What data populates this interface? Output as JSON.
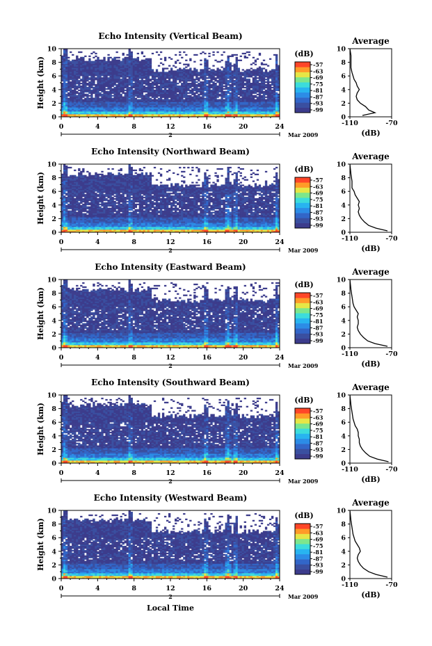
{
  "figure": {
    "x_label": "Local Time",
    "date_label": "Mar 2009",
    "day_label": "2",
    "colorbar_unit": "(dB)",
    "average_title": "Average",
    "average_xlabel": "(dB)"
  },
  "colors": {
    "colormap": [
      "#3c3c8c",
      "#3a4fa0",
      "#3266c8",
      "#2c8ce6",
      "#28b4f0",
      "#3cdcdc",
      "#7de68c",
      "#e6e646",
      "#ff9b28",
      "#ff4628"
    ],
    "background": "#ffffff"
  },
  "chart_data": [
    {
      "type": "heatmap",
      "title": "Echo Intensity (Vertical Beam)",
      "ylabel": "Height (km)",
      "xlim": [
        0,
        24
      ],
      "ylim": [
        0,
        10
      ],
      "x_ticks": [
        0,
        4,
        8,
        12,
        16,
        20,
        24
      ],
      "y_ticks": [
        0,
        2,
        4,
        6,
        8,
        10
      ],
      "colorbar_ticks": [
        -57,
        -63,
        -69,
        -75,
        -81,
        -87,
        -93,
        -99
      ],
      "avg": {
        "xlim": [
          -110,
          -70
        ],
        "x_ticks": [
          -110,
          -70
        ],
        "ylim": [
          0,
          10
        ],
        "y_ticks": [
          0,
          2,
          4,
          6,
          8,
          10
        ],
        "profile": [
          [
            -98,
            0.2
          ],
          [
            -86,
            0.6
          ],
          [
            -92,
            1.0
          ],
          [
            -95,
            1.5
          ],
          [
            -100,
            2.0
          ],
          [
            -103,
            2.5
          ],
          [
            -104,
            3.0
          ],
          [
            -103,
            3.5
          ],
          [
            -101,
            4.0
          ],
          [
            -103,
            4.5
          ],
          [
            -104,
            5.0
          ],
          [
            -106,
            5.5
          ],
          [
            -107,
            6.0
          ],
          [
            -108,
            6.5
          ],
          [
            -109,
            7.2
          ],
          [
            -109,
            8.0
          ],
          [
            -109,
            9.0
          ],
          [
            -110,
            10.0
          ]
        ]
      }
    },
    {
      "type": "heatmap",
      "title": "Echo Intensity (Northward Beam)",
      "ylabel": "Height (km)",
      "xlim": [
        0,
        24
      ],
      "ylim": [
        0,
        10
      ],
      "x_ticks": [
        0,
        4,
        8,
        12,
        16,
        20,
        24
      ],
      "y_ticks": [
        0,
        2,
        4,
        6,
        8,
        10
      ],
      "colorbar_ticks": [
        -57,
        -63,
        -69,
        -75,
        -81,
        -87,
        -93,
        -99
      ],
      "avg": {
        "xlim": [
          -110,
          -70
        ],
        "x_ticks": [
          -110,
          -70
        ],
        "ylim": [
          0,
          10
        ],
        "y_ticks": [
          0,
          2,
          4,
          6,
          8,
          10
        ],
        "profile": [
          [
            -74,
            0.2
          ],
          [
            -85,
            0.6
          ],
          [
            -92,
            1.0
          ],
          [
            -96,
            1.5
          ],
          [
            -99,
            2.0
          ],
          [
            -101,
            2.5
          ],
          [
            -102,
            3.0
          ],
          [
            -101,
            3.5
          ],
          [
            -102,
            4.0
          ],
          [
            -101,
            4.5
          ],
          [
            -103,
            5.0
          ],
          [
            -105,
            5.5
          ],
          [
            -106,
            6.0
          ],
          [
            -108,
            6.5
          ],
          [
            -108,
            7.5
          ],
          [
            -109,
            8.5
          ],
          [
            -110,
            10.0
          ]
        ]
      }
    },
    {
      "type": "heatmap",
      "title": "Echo Intensity (Eastward Beam)",
      "ylabel": "Height (km)",
      "xlim": [
        0,
        24
      ],
      "ylim": [
        0,
        10
      ],
      "x_ticks": [
        0,
        4,
        8,
        12,
        16,
        20,
        24
      ],
      "y_ticks": [
        0,
        2,
        4,
        6,
        8,
        10
      ],
      "colorbar_ticks": [
        -57,
        -63,
        -69,
        -75,
        -81,
        -87,
        -93,
        -99
      ],
      "avg": {
        "xlim": [
          -110,
          -70
        ],
        "x_ticks": [
          -110,
          -70
        ],
        "ylim": [
          0,
          10
        ],
        "y_ticks": [
          0,
          2,
          4,
          6,
          8,
          10
        ],
        "profile": [
          [
            -74,
            0.2
          ],
          [
            -86,
            0.6
          ],
          [
            -93,
            1.0
          ],
          [
            -97,
            1.5
          ],
          [
            -100,
            2.0
          ],
          [
            -102,
            2.5
          ],
          [
            -103,
            3.0
          ],
          [
            -102,
            3.5
          ],
          [
            -102,
            4.0
          ],
          [
            -103,
            4.5
          ],
          [
            -102,
            5.0
          ],
          [
            -104,
            5.5
          ],
          [
            -106,
            6.0
          ],
          [
            -107,
            6.5
          ],
          [
            -108,
            7.5
          ],
          [
            -109,
            8.5
          ],
          [
            -110,
            10.0
          ]
        ]
      }
    },
    {
      "type": "heatmap",
      "title": "Echo Intensity (Southward Beam)",
      "ylabel": "Height (km)",
      "xlim": [
        0,
        24
      ],
      "ylim": [
        0,
        10
      ],
      "x_ticks": [
        0,
        4,
        8,
        12,
        16,
        20,
        24
      ],
      "y_ticks": [
        0,
        2,
        4,
        6,
        8,
        10
      ],
      "colorbar_ticks": [
        -57,
        -63,
        -69,
        -75,
        -81,
        -87,
        -93,
        -99
      ],
      "avg": {
        "xlim": [
          -110,
          -70
        ],
        "x_ticks": [
          -110,
          -70
        ],
        "ylim": [
          0,
          10
        ],
        "y_ticks": [
          0,
          2,
          4,
          6,
          8,
          10
        ],
        "profile": [
          [
            -73,
            0.2
          ],
          [
            -84,
            0.6
          ],
          [
            -91,
            1.0
          ],
          [
            -95,
            1.5
          ],
          [
            -98,
            2.0
          ],
          [
            -100,
            2.5
          ],
          [
            -101,
            3.0
          ],
          [
            -101,
            3.5
          ],
          [
            -102,
            4.0
          ],
          [
            -102,
            4.5
          ],
          [
            -103,
            5.0
          ],
          [
            -105,
            5.5
          ],
          [
            -106,
            6.0
          ],
          [
            -107,
            6.5
          ],
          [
            -108,
            7.5
          ],
          [
            -109,
            8.5
          ],
          [
            -110,
            10.0
          ]
        ]
      }
    },
    {
      "type": "heatmap",
      "title": "Echo Intensity (Westward Beam)",
      "ylabel": "Height (km)",
      "xlim": [
        0,
        24
      ],
      "ylim": [
        0,
        10
      ],
      "x_ticks": [
        0,
        4,
        8,
        12,
        16,
        20,
        24
      ],
      "y_ticks": [
        0,
        2,
        4,
        6,
        8,
        10
      ],
      "colorbar_ticks": [
        -57,
        -63,
        -69,
        -75,
        -81,
        -87,
        -93,
        -99
      ],
      "avg": {
        "xlim": [
          -110,
          -70
        ],
        "x_ticks": [
          -110,
          -70
        ],
        "ylim": [
          0,
          10
        ],
        "y_ticks": [
          0,
          2,
          4,
          6,
          8,
          10
        ],
        "profile": [
          [
            -74,
            0.2
          ],
          [
            -85,
            0.6
          ],
          [
            -92,
            1.0
          ],
          [
            -97,
            1.5
          ],
          [
            -100,
            2.0
          ],
          [
            -102,
            2.5
          ],
          [
            -103,
            3.0
          ],
          [
            -102,
            3.5
          ],
          [
            -100,
            4.0
          ],
          [
            -101,
            4.5
          ],
          [
            -103,
            5.0
          ],
          [
            -105,
            5.5
          ],
          [
            -106,
            6.0
          ],
          [
            -107,
            6.5
          ],
          [
            -108,
            7.5
          ],
          [
            -109,
            8.5
          ],
          [
            -110,
            10.0
          ]
        ]
      }
    }
  ]
}
